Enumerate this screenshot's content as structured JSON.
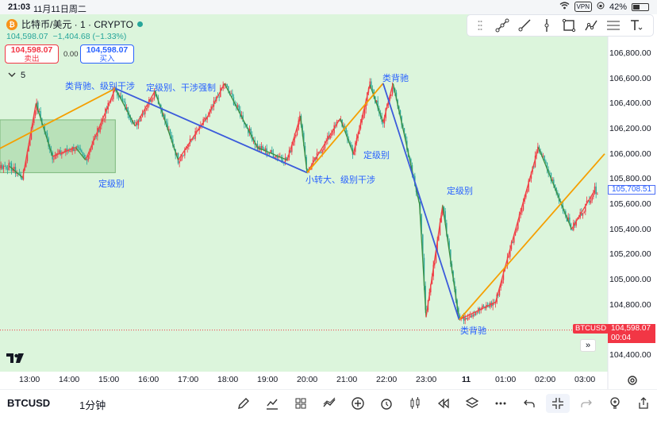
{
  "status_bar": {
    "time": "21:03",
    "date": "11月11日周二",
    "vpn": "VPN",
    "battery": "42%"
  },
  "symbol": {
    "title": "比特币/美元 · 1 · CRYPTO",
    "coin_glyph": "₿",
    "last_price": "104,598.07",
    "change": "−1,404.68 (−1.33%)",
    "sell_price": "104,598.07",
    "sell_label": "卖出",
    "buy_price": "104,598.07",
    "buy_label": "买入",
    "spread": "0.00",
    "indicator_count": "5"
  },
  "drawing_tools": [
    "trend-line-icon",
    "ray-icon",
    "vertical-line-icon",
    "rectangle-icon",
    "path-icon",
    "fib-icon",
    "text-icon"
  ],
  "price_axis": [
    "106,800.00",
    "106,600.00",
    "106,400.00",
    "106,200.00",
    "106,000.00",
    "105,800.00",
    "105,600.00",
    "105,400.00",
    "105,200.00",
    "105,000.00",
    "104,800.00",
    "104,600.00",
    "104,400.00"
  ],
  "current_price_tag": "105,708.51",
  "last_price_tag": {
    "symbol": "BTCUSD",
    "price": "104,598.07",
    "countdown": "00:04"
  },
  "time_axis": [
    "13:00",
    "14:00",
    "15:00",
    "16:00",
    "17:00",
    "18:00",
    "19:00",
    "20:00",
    "21:00",
    "22:00",
    "23:00",
    "11",
    "01:00",
    "02:00",
    "03:00"
  ],
  "annotations": {
    "a1": "类背驰、级别干涉",
    "a2": "定级别、干涉强制",
    "a3": "类背驰",
    "a4": "定级别",
    "a5": "小转大、级别干涉",
    "a6": "定级别",
    "a7": "定级别",
    "a8": "类背驰"
  },
  "chart_data": {
    "type": "candlestick",
    "symbol": "BTCUSD",
    "interval": "1",
    "ylim": [
      104300,
      106950
    ],
    "price_ticks": [
      106800,
      106600,
      106400,
      106200,
      106000,
      105800,
      105600,
      105400,
      105200,
      105000,
      104800,
      104600,
      104400
    ],
    "pivots": [
      {
        "t": "12:30",
        "p": 105900
      },
      {
        "t": "12:50",
        "p": 105810
      },
      {
        "t": "13:10",
        "p": 106400
      },
      {
        "t": "13:35",
        "p": 105980
      },
      {
        "t": "14:10",
        "p": 106050
      },
      {
        "t": "14:25",
        "p": 105950
      },
      {
        "t": "15:10",
        "p": 106520
      },
      {
        "t": "15:40",
        "p": 106220
      },
      {
        "t": "16:10",
        "p": 106500
      },
      {
        "t": "16:45",
        "p": 105950
      },
      {
        "t": "17:10",
        "p": 106150
      },
      {
        "t": "17:30",
        "p": 106300
      },
      {
        "t": "17:55",
        "p": 106560
      },
      {
        "t": "18:45",
        "p": 106050
      },
      {
        "t": "19:30",
        "p": 105950
      },
      {
        "t": "19:50",
        "p": 106300
      },
      {
        "t": "20:00",
        "p": 105850
      },
      {
        "t": "20:50",
        "p": 106280
      },
      {
        "t": "21:10",
        "p": 106000
      },
      {
        "t": "21:35",
        "p": 106550
      },
      {
        "t": "21:55",
        "p": 106250
      },
      {
        "t": "22:10",
        "p": 106560
      },
      {
        "t": "22:50",
        "p": 105600
      },
      {
        "t": "23:00",
        "p": 104700
      },
      {
        "t": "23:25",
        "p": 105590
      },
      {
        "t": "23:50",
        "p": 104680
      },
      {
        "t": "00:45",
        "p": 104820
      },
      {
        "t": "01:10",
        "p": 105300
      },
      {
        "t": "01:50",
        "p": 106050
      },
      {
        "t": "02:40",
        "p": 105400
      },
      {
        "t": "03:15",
        "p": 105710
      }
    ],
    "stroke_lines": [
      {
        "color": "#f59f00",
        "from": {
          "t": "12:00",
          "p": 106000
        },
        "to": {
          "t": "15:10",
          "p": 106520
        }
      },
      {
        "color": "#3b5bdb",
        "from": {
          "t": "15:10",
          "p": 106520
        },
        "to": {
          "t": "20:00",
          "p": 105850
        }
      },
      {
        "color": "#f59f00",
        "from": {
          "t": "20:00",
          "p": 105850
        },
        "to": {
          "t": "21:55",
          "p": 106560
        }
      },
      {
        "color": "#3b5bdb",
        "from": {
          "t": "21:55",
          "p": 106560
        },
        "to": {
          "t": "23:50",
          "p": 104680
        }
      },
      {
        "color": "#f59f00",
        "from": {
          "t": "23:50",
          "p": 104680
        },
        "to": {
          "t": "03:30",
          "p": 106000
        }
      }
    ],
    "zones": [
      {
        "from": "12:00",
        "to": "15:10",
        "low": 105850,
        "high": 106270
      }
    ],
    "colors": {
      "background": "#dcf5dc",
      "up": "#f23645",
      "down": "#26a69a",
      "price_line": "#f23645"
    }
  }
}
